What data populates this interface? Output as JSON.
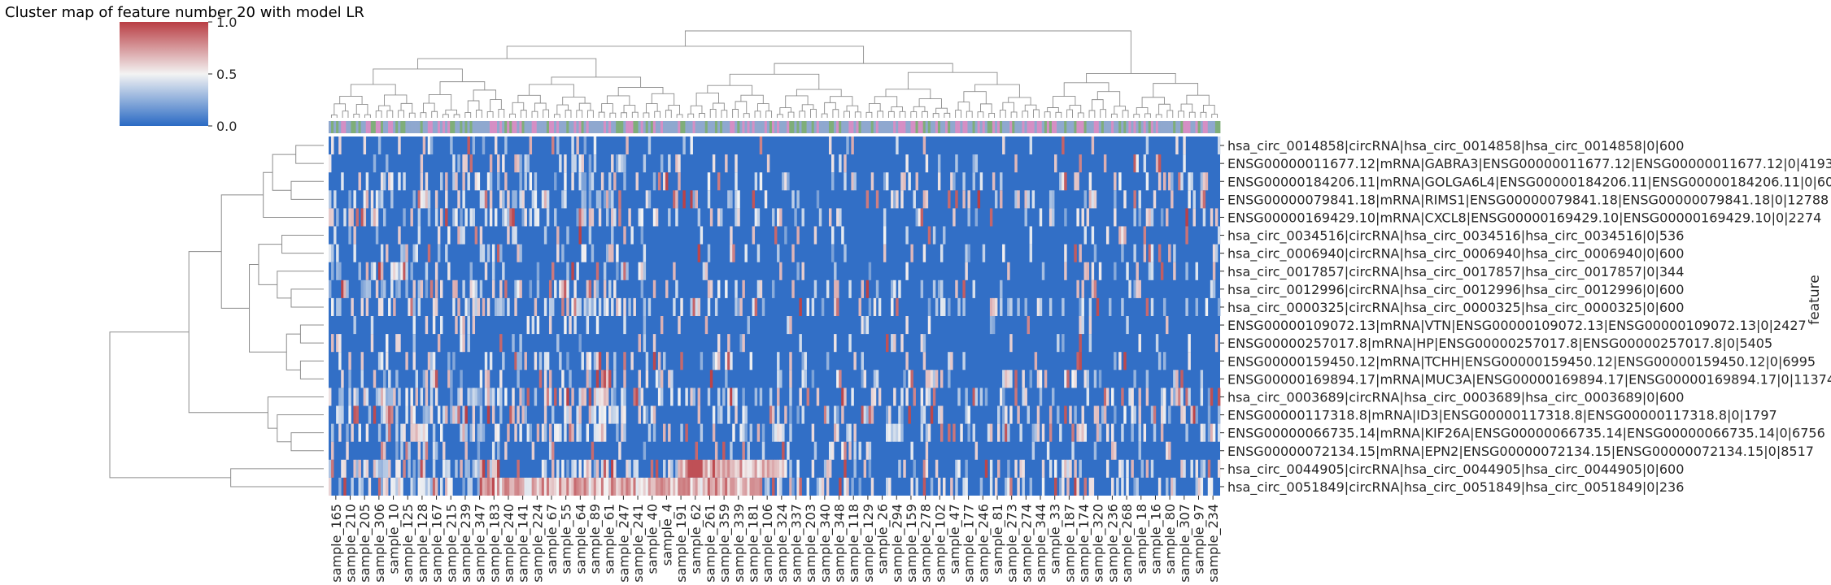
{
  "chart_data": {
    "type": "heatmap",
    "title": "Cluster map of feature number 20 with model LR",
    "ylabel": "feature",
    "xlabel": "",
    "colorbar": {
      "ticks": [
        "0.0",
        "0.5",
        "1.0"
      ],
      "range": [
        0,
        1
      ],
      "colormap": [
        "#2a6ac4",
        "#f3f3f3",
        "#b93e44"
      ]
    },
    "x_tick_labels": [
      "sample_165",
      "sample_210",
      "sample_205",
      "sample_306",
      "sample_10",
      "sample_125",
      "sample_128",
      "sample_167",
      "sample_215",
      "sample_239",
      "sample_347",
      "sample_183",
      "sample_240",
      "sample_141",
      "sample_224",
      "sample_67",
      "sample_55",
      "sample_64",
      "sample_89",
      "sample_61",
      "sample_247",
      "sample_241",
      "sample_40",
      "sample_4",
      "sample_191",
      "sample_62",
      "sample_261",
      "sample_359",
      "sample_339",
      "sample_181",
      "sample_106",
      "sample_324",
      "sample_337",
      "sample_203",
      "sample_340",
      "sample_348",
      "sample_118",
      "sample_129",
      "sample_26",
      "sample_294",
      "sample_159",
      "sample_278",
      "sample_102",
      "sample_47",
      "sample_177",
      "sample_246",
      "sample_81",
      "sample_273",
      "sample_274",
      "sample_344",
      "sample_33",
      "sample_187",
      "sample_174",
      "sample_320",
      "sample_236",
      "sample_268",
      "sample_18",
      "sample_16",
      "sample_80",
      "sample_307",
      "sample_97",
      "sample_234"
    ],
    "y_tick_labels": [
      "hsa_circ_0014858|circRNA|hsa_circ_0014858|hsa_circ_0014858|0|600",
      "ENSG00000011677.12|mRNA|GABRA3|ENSG00000011677.12|ENSG00000011677.12|0|4193",
      "ENSG00000184206.11|mRNA|GOLGA6L4|ENSG00000184206.11|ENSG00000184206.11|0|6065",
      "ENSG00000079841.18|mRNA|RIMS1|ENSG00000079841.18|ENSG00000079841.18|0|12788",
      "ENSG00000169429.10|mRNA|CXCL8|ENSG00000169429.10|ENSG00000169429.10|0|2274",
      "hsa_circ_0034516|circRNA|hsa_circ_0034516|hsa_circ_0034516|0|536",
      "hsa_circ_0006940|circRNA|hsa_circ_0006940|hsa_circ_0006940|0|600",
      "hsa_circ_0017857|circRNA|hsa_circ_0017857|hsa_circ_0017857|0|344",
      "hsa_circ_0012996|circRNA|hsa_circ_0012996|hsa_circ_0012996|0|600",
      "hsa_circ_0000325|circRNA|hsa_circ_0000325|hsa_circ_0000325|0|600",
      "ENSG00000109072.13|mRNA|VTN|ENSG00000109072.13|ENSG00000109072.13|0|2427",
      "ENSG00000257017.8|mRNA|HP|ENSG00000257017.8|ENSG00000257017.8|0|5405",
      "ENSG00000159450.12|mRNA|TCHH|ENSG00000159450.12|ENSG00000159450.12|0|6995",
      "ENSG00000169894.17|mRNA|MUC3A|ENSG00000169894.17|ENSG00000169894.17|0|11374",
      "hsa_circ_0003689|circRNA|hsa_circ_0003689|hsa_circ_0003689|0|600",
      "ENSG00000117318.8|mRNA|ID3|ENSG00000117318.8|ENSG00000117318.8|0|1797",
      "ENSG00000066735.14|mRNA|KIF26A|ENSG00000066735.14|ENSG00000066735.14|0|6756",
      "ENSG00000072134.15|mRNA|EPN2|ENSG00000072134.15|ENSG00000072134.15|0|8517",
      "hsa_circ_0044905|circRNA|hsa_circ_0044905|hsa_circ_0044905|0|600",
      "hsa_circ_0051849|circRNA|hsa_circ_0051849|hsa_circ_0051849|0|236"
    ],
    "column_colors_palette": [
      "#8fa8cf",
      "#d58fc4",
      "#7fae79"
    ],
    "row_dendrogram": [
      {
        "a": "L0",
        "b": "L1",
        "h": 0.06
      },
      {
        "a": "L2",
        "b": "L3",
        "h": 0.07
      },
      {
        "a": "N0",
        "b": "N1",
        "h": 0.11
      },
      {
        "a": "L4",
        "b": "N2",
        "h": 0.13
      },
      {
        "a": "L5",
        "b": "L6",
        "h": 0.09
      },
      {
        "a": "L8",
        "b": "L9",
        "h": 0.07
      },
      {
        "a": "L7",
        "b": "N5",
        "h": 0.1
      },
      {
        "a": "N4",
        "b": "N6",
        "h": 0.14
      },
      {
        "a": "L10",
        "b": "L11",
        "h": 0.05
      },
      {
        "a": "L12",
        "b": "L13",
        "h": 0.05
      },
      {
        "a": "N8",
        "b": "N9",
        "h": 0.08
      },
      {
        "a": "N7",
        "b": "N10",
        "h": 0.16
      },
      {
        "a": "N3",
        "b": "N11",
        "h": 0.22
      },
      {
        "a": "L16",
        "b": "L17",
        "h": 0.07
      },
      {
        "a": "L15",
        "b": "N13",
        "h": 0.1
      },
      {
        "a": "L14",
        "b": "N14",
        "h": 0.12
      },
      {
        "a": "N12",
        "b": "N15",
        "h": 0.29
      },
      {
        "a": "L18",
        "b": "L19",
        "h": 0.2
      },
      {
        "a": "N16",
        "b": "N17",
        "h": 0.46
      }
    ]
  }
}
